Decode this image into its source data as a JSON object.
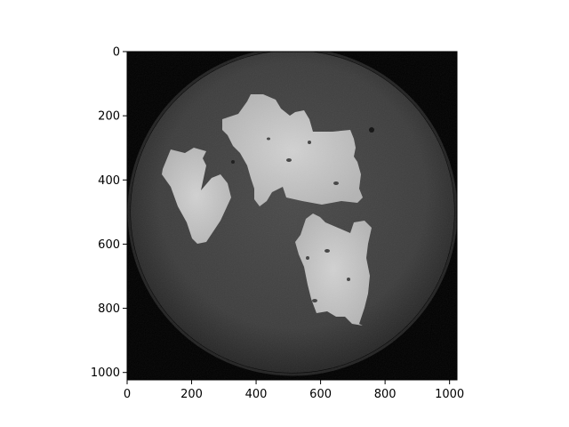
{
  "image": {
    "description_icon": "microscopy-disc-icon",
    "axes": {
      "x_ticks": [
        "0",
        "200",
        "400",
        "600",
        "800",
        "1000"
      ],
      "y_ticks": [
        "0",
        "200",
        "400",
        "600",
        "800",
        "1000"
      ],
      "x_range": [
        0,
        1023
      ],
      "y_range": [
        1023,
        0
      ]
    },
    "colors": {
      "background": "#000000",
      "disc": "#3c3c3c",
      "flakes": "#c8c8c8"
    }
  }
}
